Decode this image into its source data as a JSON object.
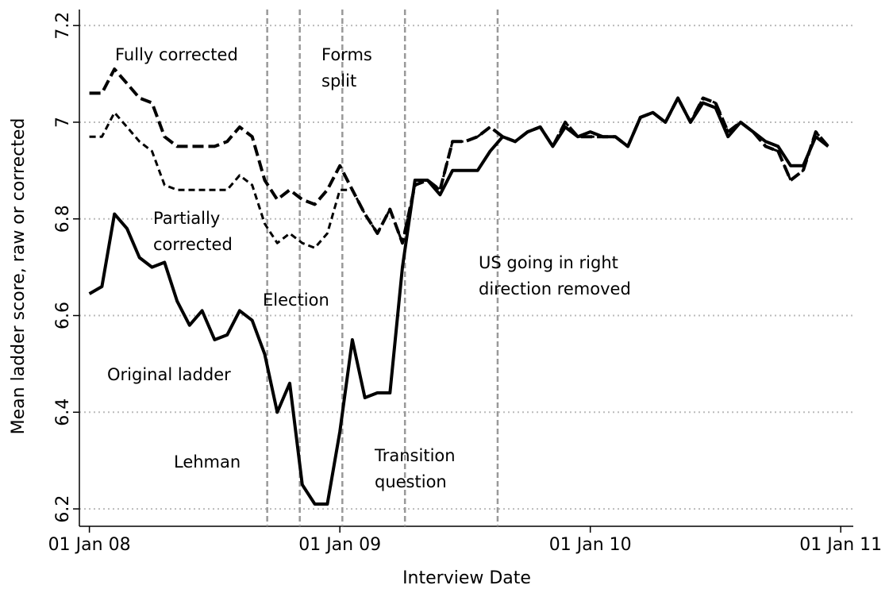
{
  "chart_data": {
    "type": "line",
    "x_label": "Interview Date",
    "y_label": "Mean ladder score, raw or corrected",
    "x": [
      2008.0,
      2008.05,
      2008.1,
      2008.15,
      2008.2,
      2008.25,
      2008.3,
      2008.35,
      2008.4,
      2008.45,
      2008.5,
      2008.55,
      2008.6,
      2008.65,
      2008.7,
      2008.75,
      2008.8,
      2008.85,
      2008.9,
      2008.95,
      2009.0,
      2009.05,
      2009.1,
      2009.15,
      2009.2,
      2009.25,
      2009.3,
      2009.35,
      2009.4,
      2009.45,
      2009.5,
      2009.55,
      2009.6,
      2009.65,
      2009.7,
      2009.75,
      2009.8,
      2009.85,
      2009.9,
      2009.95,
      2010.0,
      2010.05,
      2010.1,
      2010.15,
      2010.2,
      2010.25,
      2010.3,
      2010.35,
      2010.4,
      2010.45,
      2010.5,
      2010.55,
      2010.6,
      2010.65,
      2010.7,
      2010.75,
      2010.8,
      2010.85,
      2010.9,
      2010.95
    ],
    "series": [
      {
        "name": "Original ladder",
        "color": "#000000",
        "style": "solid",
        "values": [
          6.645,
          6.66,
          6.81,
          6.78,
          6.72,
          6.7,
          6.71,
          6.63,
          6.58,
          6.61,
          6.55,
          6.56,
          6.61,
          6.59,
          6.52,
          6.4,
          6.46,
          6.25,
          6.21,
          6.21,
          6.36,
          6.55,
          6.43,
          6.44,
          6.44,
          6.7,
          6.88,
          6.88,
          6.85,
          6.9,
          6.9,
          6.9,
          6.94,
          6.97,
          6.96,
          6.98,
          6.99,
          6.95,
          6.99,
          6.97,
          6.98,
          6.97,
          6.97,
          6.95,
          7.01,
          7.02,
          7.0,
          7.05,
          7.0,
          7.04,
          7.03,
          6.97,
          7.0,
          6.98,
          6.96,
          6.95,
          6.91,
          6.91,
          6.97,
          6.95
        ]
      },
      {
        "name": "Fully corrected",
        "color": "#000000",
        "style": "dashed",
        "values": [
          7.06,
          7.06,
          7.11,
          7.08,
          7.05,
          7.04,
          6.97,
          6.95,
          6.95,
          6.95,
          6.95,
          6.96,
          6.99,
          6.97,
          6.88,
          6.84,
          6.86,
          6.84,
          6.83,
          6.86,
          6.91,
          6.86,
          6.81,
          6.77,
          6.82,
          6.75,
          6.87,
          6.88,
          6.86,
          6.96,
          6.96,
          6.97,
          6.99,
          6.97,
          6.96,
          6.98,
          6.99,
          6.95,
          7.0,
          6.97,
          6.97,
          6.97,
          6.97,
          6.95,
          7.01,
          7.02,
          7.0,
          7.05,
          7.0,
          7.05,
          7.04,
          6.98,
          7.0,
          6.98,
          6.95,
          6.94,
          6.88,
          6.9,
          6.98,
          6.95
        ]
      },
      {
        "name": "Partially corrected",
        "color": "#000000",
        "style": "short-dashed",
        "values": [
          6.97,
          6.97,
          7.02,
          6.99,
          6.96,
          6.94,
          6.87,
          6.86,
          6.86,
          6.86,
          6.86,
          6.86,
          6.89,
          6.87,
          6.79,
          6.75,
          6.77,
          6.75,
          6.74,
          6.77,
          6.86,
          6.86,
          6.81,
          6.77,
          6.82,
          6.75,
          6.87,
          6.88,
          6.86,
          6.96,
          6.96,
          6.97,
          6.99,
          6.97,
          6.96,
          6.98,
          6.99,
          6.95,
          7.0,
          6.97,
          6.97,
          6.97,
          6.97,
          6.95,
          7.01,
          7.02,
          7.0,
          7.05,
          7.0,
          7.05,
          7.04,
          6.98,
          7.0,
          6.98,
          6.95,
          6.94,
          6.88,
          6.9,
          6.98,
          6.95
        ]
      }
    ],
    "event_lines": [
      2008.71,
      2008.84,
      2009.01,
      2009.26,
      2009.63
    ],
    "annotations": [
      {
        "lines": [
          "Fully corrected"
        ]
      },
      {
        "lines": [
          "Forms",
          "split"
        ]
      },
      {
        "lines": [
          "Partially",
          "corrected"
        ]
      },
      {
        "lines": [
          "Election"
        ]
      },
      {
        "lines": [
          "Original ladder"
        ]
      },
      {
        "lines": [
          "Lehman"
        ]
      },
      {
        "lines": [
          "Transition",
          "question"
        ]
      },
      {
        "lines": [
          "US going in right",
          "direction removed"
        ]
      }
    ],
    "xlim": [
      2007.96,
      2011.05
    ],
    "xticks": [
      {
        "value": 2008,
        "label": "01 Jan 08"
      },
      {
        "value": 2009,
        "label": "01 Jan 09"
      },
      {
        "value": 2010,
        "label": "01 Jan 10"
      },
      {
        "value": 2011,
        "label": "01 Jan 11"
      }
    ],
    "ylim": [
      6.164,
      7.22
    ],
    "yticks": [
      6.2,
      6.4,
      6.6,
      6.8,
      7,
      7.2
    ],
    "grid": true
  }
}
